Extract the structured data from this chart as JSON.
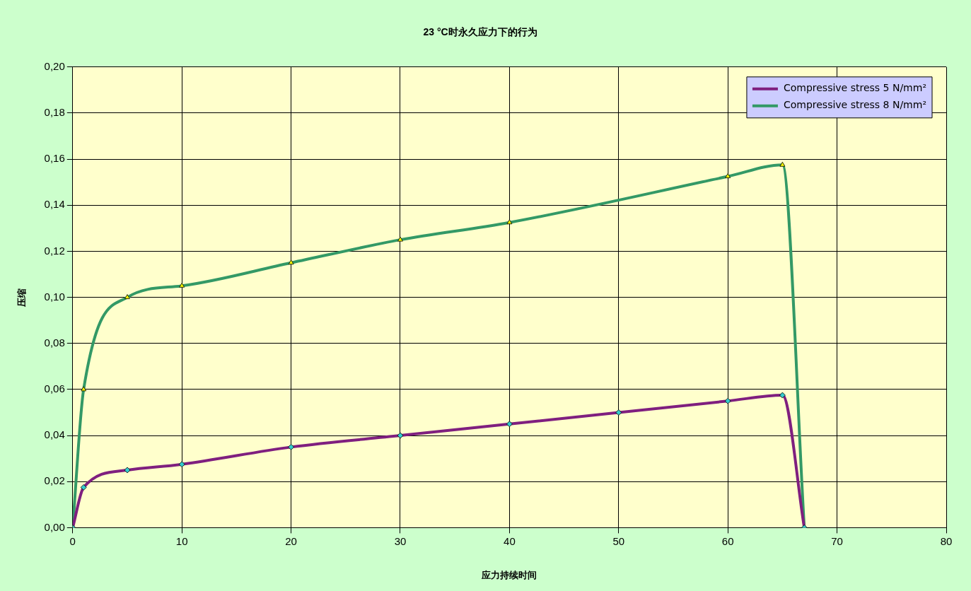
{
  "chart_data": {
    "type": "line",
    "title": "23 °C时永久应力下的行为",
    "xlabel": "应力持续时间",
    "ylabel": "压缩",
    "xlim": [
      0,
      80
    ],
    "xticks": [
      0,
      10,
      20,
      30,
      40,
      50,
      60,
      70,
      80
    ],
    "ylim": [
      0,
      0.2
    ],
    "yticks": [
      {
        "value": 0,
        "label": "0,00"
      },
      {
        "value": 0.02,
        "label": "0,02"
      },
      {
        "value": 0.04,
        "label": "0,04"
      },
      {
        "value": 0.06,
        "label": "0,06"
      },
      {
        "value": 0.08,
        "label": "0,08"
      },
      {
        "value": 0.1,
        "label": "0,10"
      },
      {
        "value": 0.12,
        "label": "0,12"
      },
      {
        "value": 0.14,
        "label": "0,14"
      },
      {
        "value": 0.16,
        "label": "0,16"
      },
      {
        "value": 0.18,
        "label": "0,18"
      },
      {
        "value": 0.2,
        "label": "0,20"
      }
    ],
    "grid": true,
    "legend": "top right",
    "series": [
      {
        "name": "Compressive stress 5 N/mm²",
        "color": "#7f1f7f",
        "marker": "diamond",
        "x": [
          0,
          1,
          5,
          10,
          20,
          30,
          40,
          50,
          60,
          65,
          67
        ],
        "values": [
          0,
          0.0175,
          0.025,
          0.0275,
          0.035,
          0.04,
          0.045,
          0.05,
          0.055,
          0.0575,
          0
        ]
      },
      {
        "name": "Compressive stress 8 N/mm²",
        "color": "#339966",
        "marker": "triangle",
        "x": [
          0,
          1,
          5,
          10,
          20,
          30,
          40,
          60,
          65,
          67
        ],
        "values": [
          0,
          0.06,
          0.1,
          0.105,
          0.115,
          0.125,
          0.1325,
          0.1525,
          0.1575,
          0
        ]
      }
    ]
  }
}
